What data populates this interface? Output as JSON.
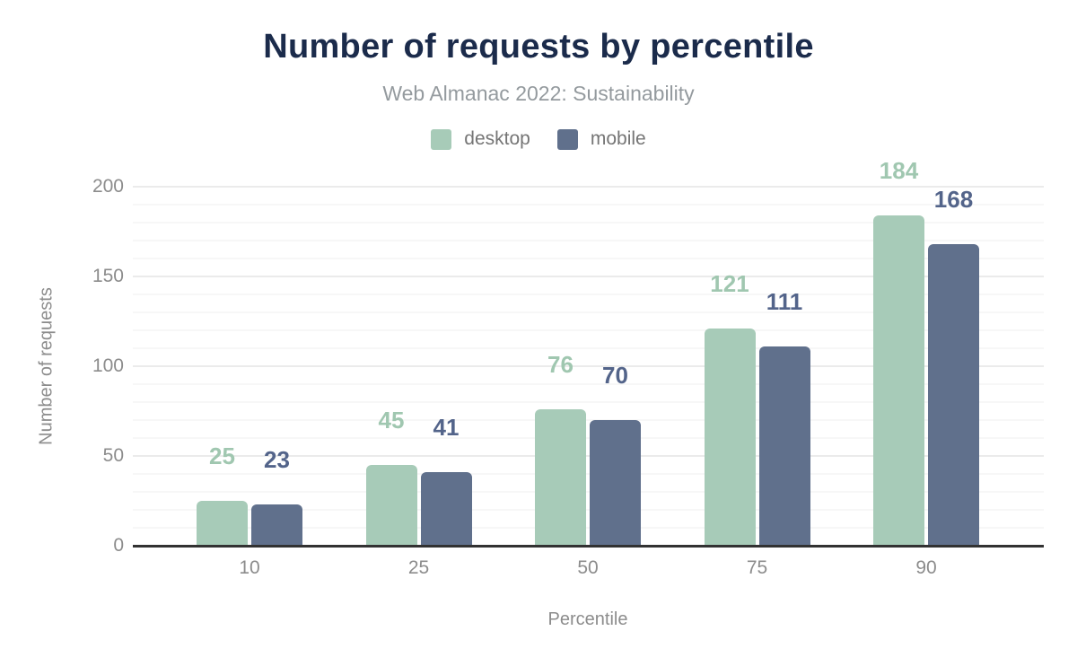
{
  "header": {
    "title": "Number of requests by percentile",
    "subtitle": "Web Almanac 2022: Sustainability"
  },
  "legend": {
    "items": [
      {
        "label": "desktop",
        "color": "#a7cbb8"
      },
      {
        "label": "mobile",
        "color": "#60708c"
      }
    ]
  },
  "chart_data": {
    "type": "bar",
    "title": "Number of requests by percentile",
    "subtitle": "Web Almanac 2022: Sustainability",
    "categories": [
      "10",
      "25",
      "50",
      "75",
      "90"
    ],
    "series": [
      {
        "name": "desktop",
        "values": [
          25,
          45,
          76,
          121,
          184
        ],
        "color": "#a7cbb8",
        "label_color": "#a0c7b0"
      },
      {
        "name": "mobile",
        "values": [
          23,
          41,
          70,
          111,
          168
        ],
        "color": "#60708c",
        "label_color": "#53648a"
      }
    ],
    "xlabel": "Percentile",
    "ylabel": "Number of requests",
    "yticks": [
      0,
      50,
      100,
      150,
      200
    ],
    "ylim": [
      0,
      200
    ],
    "grid": "horizontal, minor every 10, major every 50",
    "legend_position": "top",
    "data_labels": "above bars"
  },
  "colors": {
    "title_text": "#1b2b4b",
    "subtitle_text": "#949a9e",
    "axis_text": "#8c8c8c",
    "legend_text": "#757575",
    "baseline": "#323232",
    "gridline_major": "#ebebeb",
    "gridline_minor": "#f7f7f7",
    "background": "#ffffff"
  }
}
